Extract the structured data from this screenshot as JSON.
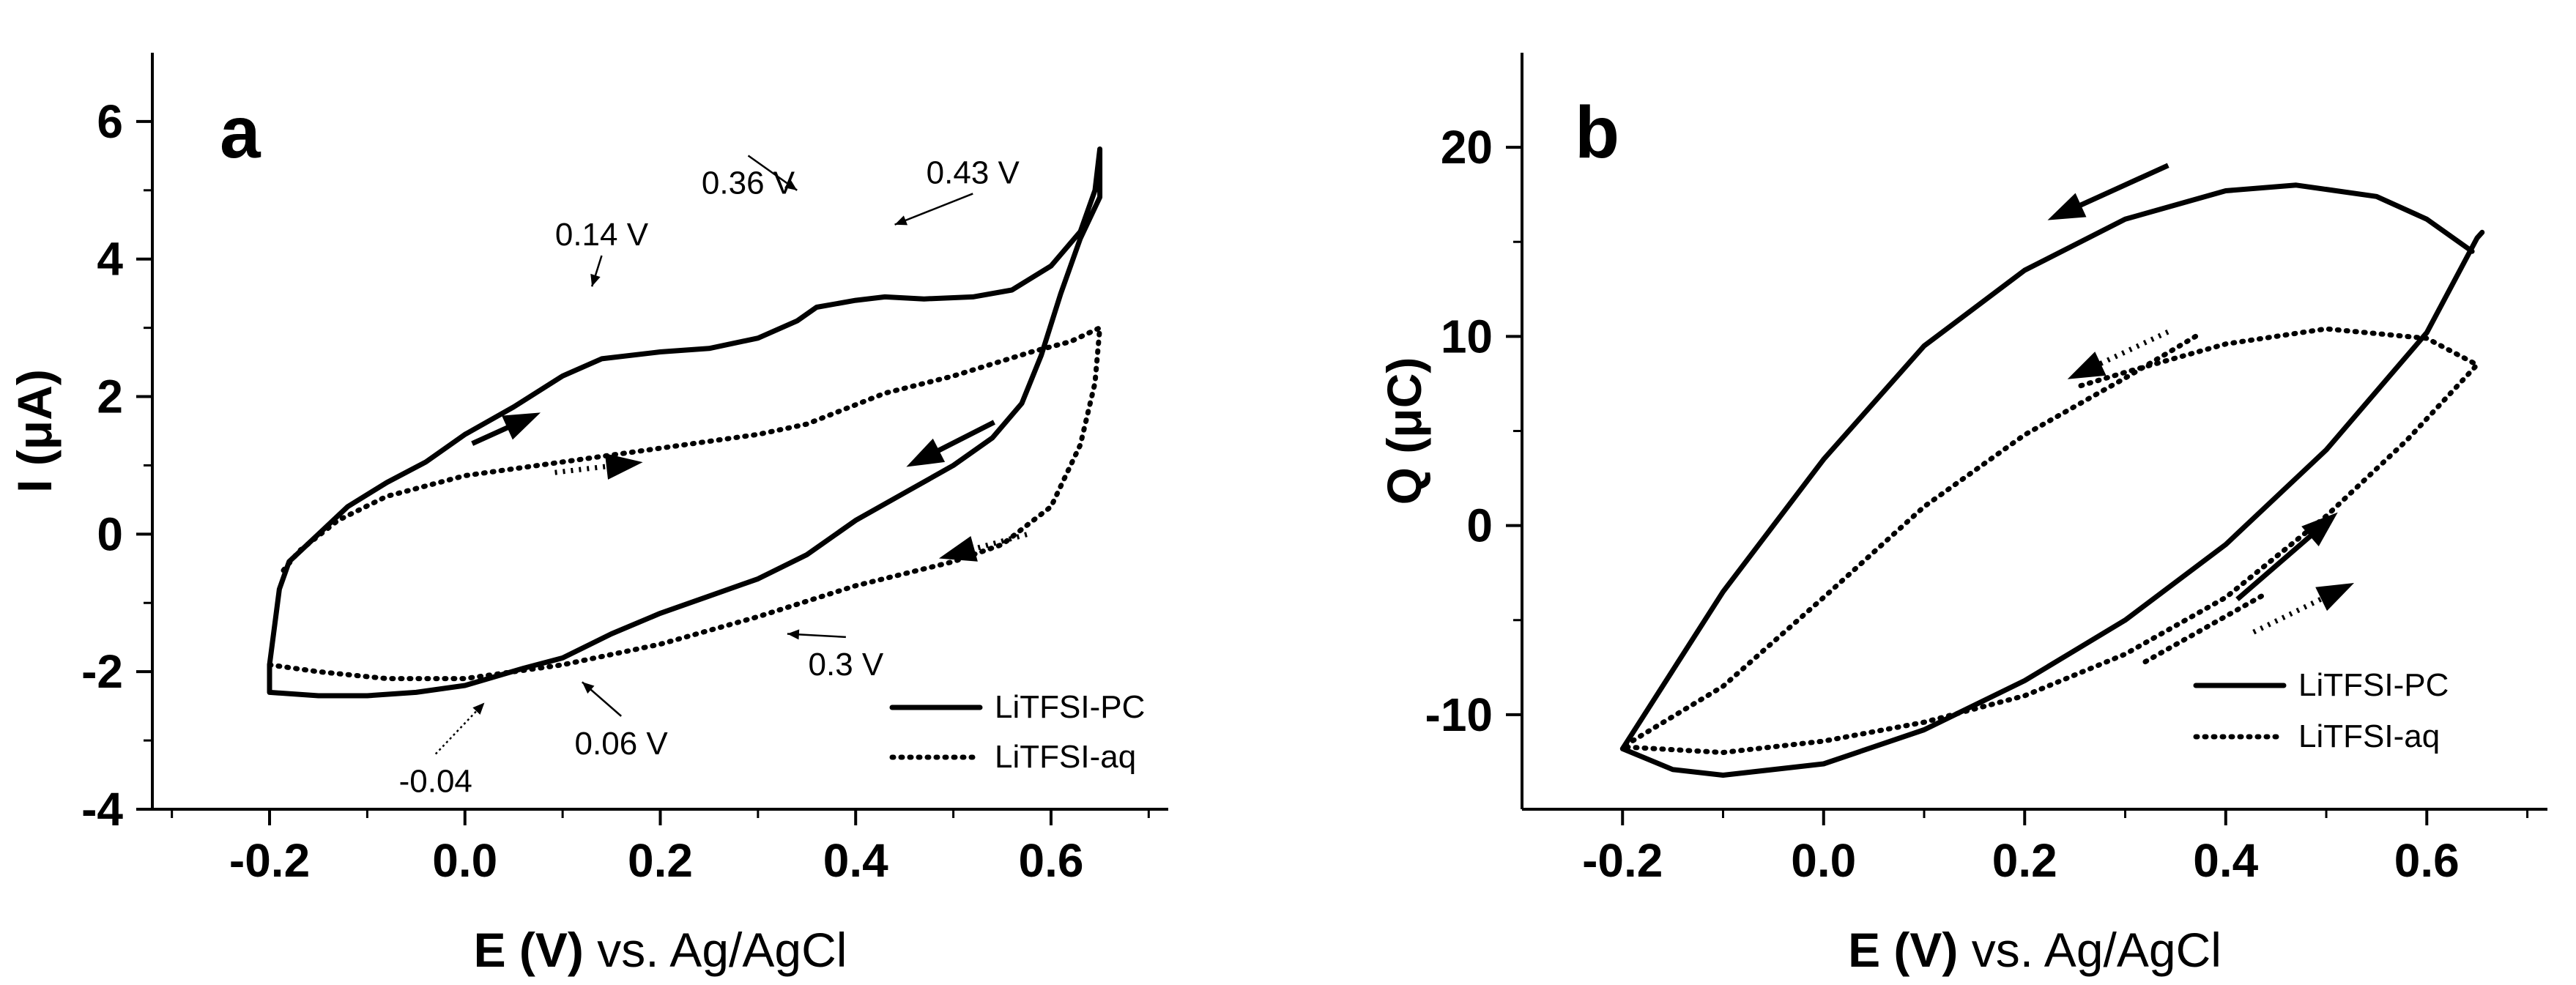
{
  "chart_data": [
    {
      "panel": "a",
      "type": "line",
      "title": "",
      "xlabel_bold": "E (V)",
      "xlabel_rest": " vs. Ag/AgCl",
      "ylabel": "I (μA)",
      "xlim": [
        -0.32,
        0.72
      ],
      "ylim": [
        -4,
        7
      ],
      "xticks": [
        -0.2,
        0.0,
        0.2,
        0.4,
        0.6
      ],
      "xtick_labels": [
        "-0.2",
        "0.0",
        "0.2",
        "0.4",
        "0.6"
      ],
      "yticks": [
        -4,
        -2,
        0,
        2,
        4,
        6
      ],
      "ytick_labels": [
        "-4",
        "-2",
        "0",
        "2",
        "4",
        "6"
      ],
      "legend": {
        "position": "bottom-right",
        "entries": [
          "LiTFSI-PC",
          "LiTFSI-aq"
        ]
      },
      "series": [
        {
          "name": "LiTFSI-PC",
          "style": "solid",
          "points": [
            [
              -0.2,
              -2.3
            ],
            [
              -0.2,
              -1.9
            ],
            [
              -0.19,
              -0.8
            ],
            [
              -0.18,
              -0.4
            ],
            [
              -0.15,
              0.0
            ],
            [
              -0.12,
              0.4
            ],
            [
              -0.08,
              0.75
            ],
            [
              -0.04,
              1.05
            ],
            [
              0.0,
              1.45
            ],
            [
              0.05,
              1.85
            ],
            [
              0.1,
              2.3
            ],
            [
              0.14,
              2.55
            ],
            [
              0.2,
              2.65
            ],
            [
              0.25,
              2.7
            ],
            [
              0.3,
              2.85
            ],
            [
              0.34,
              3.1
            ],
            [
              0.36,
              3.3
            ],
            [
              0.4,
              3.4
            ],
            [
              0.43,
              3.45
            ],
            [
              0.47,
              3.42
            ],
            [
              0.52,
              3.45
            ],
            [
              0.56,
              3.55
            ],
            [
              0.6,
              3.9
            ],
            [
              0.63,
              4.4
            ],
            [
              0.645,
              5.0
            ],
            [
              0.65,
              5.6
            ],
            [
              0.65,
              4.9
            ],
            [
              0.63,
              4.3
            ],
            [
              0.61,
              3.5
            ],
            [
              0.59,
              2.6
            ],
            [
              0.57,
              1.9
            ],
            [
              0.54,
              1.4
            ],
            [
              0.5,
              1.0
            ],
            [
              0.45,
              0.6
            ],
            [
              0.4,
              0.2
            ],
            [
              0.35,
              -0.3
            ],
            [
              0.3,
              -0.65
            ],
            [
              0.25,
              -0.9
            ],
            [
              0.2,
              -1.15
            ],
            [
              0.15,
              -1.45
            ],
            [
              0.1,
              -1.8
            ],
            [
              0.06,
              -1.95
            ],
            [
              0.0,
              -2.2
            ],
            [
              -0.05,
              -2.3
            ],
            [
              -0.1,
              -2.35
            ],
            [
              -0.15,
              -2.35
            ],
            [
              -0.2,
              -2.3
            ]
          ]
        },
        {
          "name": "LiTFSI-aq",
          "style": "dotted",
          "points": [
            [
              -0.2,
              -1.9
            ],
            [
              -0.15,
              -2.0
            ],
            [
              -0.08,
              -2.1
            ],
            [
              0.0,
              -2.1
            ],
            [
              0.1,
              -1.9
            ],
            [
              0.2,
              -1.6
            ],
            [
              0.3,
              -1.2
            ],
            [
              0.4,
              -0.75
            ],
            [
              0.5,
              -0.4
            ],
            [
              0.55,
              -0.15
            ],
            [
              0.6,
              0.4
            ],
            [
              0.63,
              1.3
            ],
            [
              0.645,
              2.2
            ],
            [
              0.65,
              3.0
            ],
            [
              0.62,
              2.8
            ],
            [
              0.58,
              2.65
            ],
            [
              0.5,
              2.3
            ],
            [
              0.43,
              2.05
            ],
            [
              0.35,
              1.6
            ],
            [
              0.3,
              1.45
            ],
            [
              0.2,
              1.25
            ],
            [
              0.1,
              1.05
            ],
            [
              0.0,
              0.85
            ],
            [
              -0.08,
              0.55
            ],
            [
              -0.13,
              0.2
            ],
            [
              -0.17,
              -0.25
            ],
            [
              -0.19,
              -0.6
            ]
          ]
        }
      ],
      "annotations": [
        {
          "text": "0.14 V",
          "x": 0.14,
          "y": 4.2,
          "arrow_to": [
            0.13,
            3.6
          ]
        },
        {
          "text": "0.36 V",
          "x": 0.29,
          "y": 4.95,
          "arrow_to": [
            0.34,
            5.0
          ]
        },
        {
          "text": "0.43 V",
          "x": 0.52,
          "y": 5.1,
          "arrow_to": [
            0.44,
            4.5
          ]
        },
        {
          "text": "0.3 V",
          "x": 0.39,
          "y": -2.05,
          "arrow_to": [
            0.33,
            -1.45
          ]
        },
        {
          "text": "0.06 V",
          "x": 0.16,
          "y": -3.2,
          "arrow_to": [
            0.12,
            -2.15
          ]
        },
        {
          "text": "-0.04",
          "x": -0.03,
          "y": -3.75,
          "arrow_to": [
            0.02,
            -2.45
          ]
        }
      ]
    },
    {
      "panel": "b",
      "type": "line",
      "title": "",
      "xlabel_bold": "E (V)",
      "xlabel_rest": " vs. Ag/AgCl",
      "ylabel": "Q (μC)",
      "xlim": [
        -0.3,
        0.72
      ],
      "ylim": [
        -15,
        25
      ],
      "xticks": [
        -0.2,
        0.0,
        0.2,
        0.4,
        0.6
      ],
      "xtick_labels": [
        "-0.2",
        "0.0",
        "0.2",
        "0.4",
        "0.6"
      ],
      "yticks": [
        -10,
        0,
        10,
        20
      ],
      "ytick_labels": [
        "-10",
        "0",
        "10",
        "20"
      ],
      "legend": {
        "position": "bottom-right",
        "entries": [
          "LiTFSI-PC",
          "LiTFSI-aq"
        ]
      },
      "series": [
        {
          "name": "LiTFSI-PC",
          "style": "solid",
          "points": [
            [
              0.645,
              14.5
            ],
            [
              0.6,
              16.2
            ],
            [
              0.55,
              17.4
            ],
            [
              0.47,
              18.0
            ],
            [
              0.4,
              17.7
            ],
            [
              0.3,
              16.2
            ],
            [
              0.2,
              13.5
            ],
            [
              0.1,
              9.5
            ],
            [
              0.0,
              3.5
            ],
            [
              -0.1,
              -3.5
            ],
            [
              -0.2,
              -11.8
            ],
            [
              -0.15,
              -12.9
            ],
            [
              -0.1,
              -13.2
            ],
            [
              0.0,
              -12.6
            ],
            [
              0.1,
              -10.8
            ],
            [
              0.2,
              -8.2
            ],
            [
              0.3,
              -5.0
            ],
            [
              0.4,
              -1.0
            ],
            [
              0.5,
              4.0
            ],
            [
              0.6,
              10.2
            ],
            [
              0.65,
              15.2
            ],
            [
              0.655,
              15.5
            ]
          ]
        },
        {
          "name": "LiTFSI-aq",
          "style": "dotted",
          "points": [
            [
              0.37,
              10.0
            ],
            [
              0.3,
              7.8
            ],
            [
              0.2,
              4.8
            ],
            [
              0.1,
              1.0
            ],
            [
              0.0,
              -3.8
            ],
            [
              -0.1,
              -8.5
            ],
            [
              -0.2,
              -11.7
            ],
            [
              -0.1,
              -12.0
            ],
            [
              0.0,
              -11.4
            ],
            [
              0.1,
              -10.4
            ],
            [
              0.2,
              -9.0
            ],
            [
              0.3,
              -6.8
            ],
            [
              0.4,
              -3.8
            ],
            [
              0.5,
              0.5
            ],
            [
              0.58,
              4.5
            ],
            [
              0.65,
              8.5
            ],
            [
              0.6,
              9.9
            ],
            [
              0.5,
              10.4
            ],
            [
              0.4,
              9.6
            ],
            [
              0.3,
              8.1
            ],
            [
              0.25,
              7.3
            ]
          ]
        },
        {
          "name": "aq-tail",
          "style": "dotted",
          "legend": false,
          "points": [
            [
              0.32,
              -7.2
            ],
            [
              0.38,
              -5.4
            ],
            [
              0.44,
              -3.6
            ]
          ]
        }
      ],
      "annotations": []
    }
  ]
}
